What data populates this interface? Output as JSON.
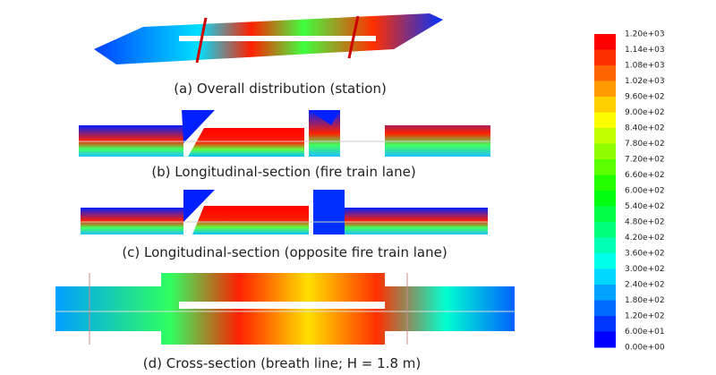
{
  "captions": [
    "(a) Overall distribution (station)",
    "(b) Longitudinal-section (fire train lane)",
    "(c) Longitudinal-section (opposite fire train lane)",
    "(d) Cross-section (breath line; H = 1.8 m)"
  ],
  "colorbar": {
    "labels": [
      "1.20e+03",
      "1.14e+03",
      "1.08e+03",
      "1.02e+03",
      "9.60e+02",
      "9.00e+02",
      "8.40e+02",
      "7.80e+02",
      "7.20e+02",
      "6.60e+02",
      "6.00e+02",
      "5.40e+02",
      "4.80e+02",
      "4.20e+02",
      "3.60e+02",
      "3.00e+02",
      "2.40e+02",
      "1.80e+02",
      "1.20e+02",
      "6.00e+01",
      "0.00e+00"
    ],
    "colors": [
      "#ff0000",
      "#ff2e00",
      "#ff6400",
      "#ff9a00",
      "#ffcf00",
      "#fbff00",
      "#c5ff00",
      "#8fff00",
      "#5aff00",
      "#24ff00",
      "#00ff12",
      "#00ff47",
      "#00ff7d",
      "#00ffb3",
      "#00ffe8",
      "#00d7ff",
      "#00a1ff",
      "#006bff",
      "#0036ff",
      "#0000ff"
    ]
  }
}
